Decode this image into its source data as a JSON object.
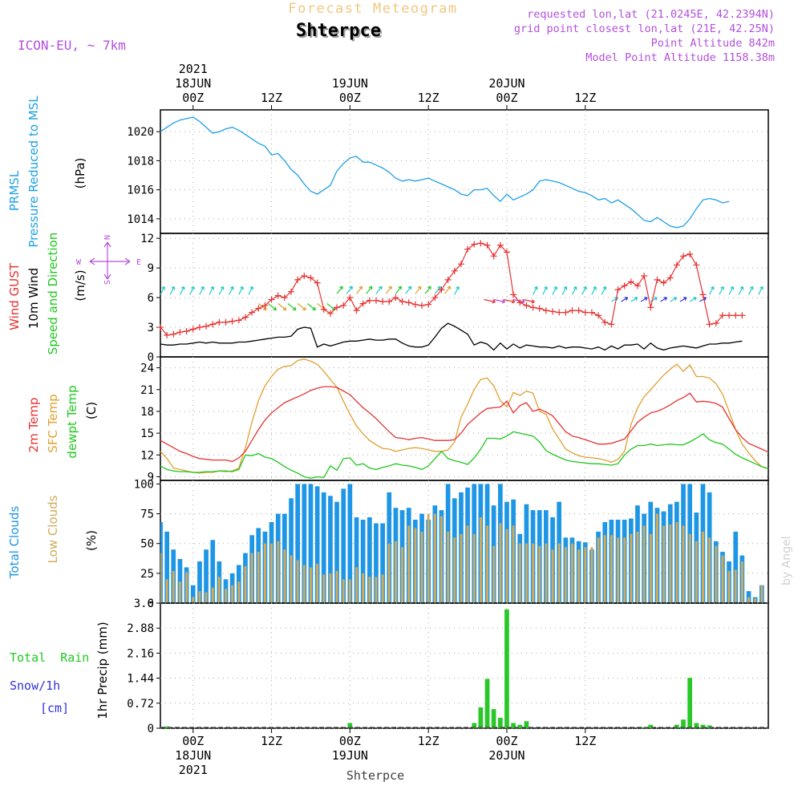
{
  "header": {
    "super_title": "Forecast Meteogram",
    "station": "Shterpce",
    "model": "ICON-EU, ~ 7km",
    "requested": "requested lon,lat (21.0245E, 42.2394N)",
    "grid_point": "grid point closest lon,lat (21E, 42.25N)",
    "point_altitude": "Point Altitude 842m",
    "model_altitude": "Model Point Altitude 1158.38m",
    "credit": "by Angel",
    "footer_station": "Shterpce"
  },
  "colors": {
    "pressure": "#1ea0e6",
    "gust": "#e63232",
    "wind": "#000000",
    "temp2m": "#e63232",
    "sfc": "#e0a030",
    "dewpt": "#1ec81e",
    "total_cloud": "#1e96e6",
    "low_cloud": "#d2aa5a",
    "rain": "#28c828",
    "snow": "#3232dc",
    "purple": "#b450dc"
  },
  "time_axis": {
    "top_labels": [
      {
        "lines": [
          "2021",
          "18JUN",
          "00Z"
        ],
        "hour": 0
      },
      {
        "lines": [
          "12Z"
        ],
        "hour": 12
      },
      {
        "lines": [
          "19JUN",
          "00Z"
        ],
        "hour": 24
      },
      {
        "lines": [
          "12Z"
        ],
        "hour": 36
      },
      {
        "lines": [
          "20JUN",
          "00Z"
        ],
        "hour": 48
      },
      {
        "lines": [
          "12Z"
        ],
        "hour": 60
      }
    ],
    "bottom_labels": [
      {
        "lines": [
          "00Z",
          "18JUN",
          "2021"
        ],
        "hour": 0
      },
      {
        "lines": [
          "12Z"
        ],
        "hour": 12
      },
      {
        "lines": [
          "00Z",
          "19JUN"
        ],
        "hour": 24
      },
      {
        "lines": [
          "12Z"
        ],
        "hour": 36
      },
      {
        "lines": [
          "00Z",
          "20JUN"
        ],
        "hour": 48
      },
      {
        "lines": [
          "12Z"
        ],
        "hour": 60
      }
    ]
  },
  "chart_data": [
    {
      "id": "pressure",
      "type": "line",
      "title": "PRMSL Pressure Reduced to MSL",
      "ylabel_lines": [
        "PRMSL",
        "Pressure Reduced to MSL"
      ],
      "unit": "(hPa)",
      "ylim": [
        1013,
        1021.5
      ],
      "yticks": [
        1014,
        1016,
        1018,
        1020
      ],
      "x_start": -5,
      "x_step": 1,
      "series": [
        {
          "name": "PRMSL",
          "values": [
            1020.0,
            1020.3,
            1020.6,
            1020.8,
            1020.9,
            1021.0,
            1020.7,
            1020.3,
            1019.9,
            1020.0,
            1020.2,
            1020.3,
            1020.1,
            1019.8,
            1019.5,
            1019.2,
            1019.0,
            1018.4,
            1018.5,
            1018.0,
            1017.4,
            1017.0,
            1016.4,
            1015.9,
            1015.7,
            1016.0,
            1016.3,
            1017.3,
            1017.8,
            1018.2,
            1018.3,
            1017.9,
            1017.9,
            1017.7,
            1017.5,
            1017.2,
            1016.8,
            1016.6,
            1016.7,
            1016.6,
            1016.7,
            1016.8,
            1016.6,
            1016.4,
            1016.2,
            1016.0,
            1015.7,
            1015.6,
            1016.0,
            1016.0,
            1016.1,
            1015.6,
            1015.2,
            1015.7,
            1015.3,
            1015.5,
            1015.7,
            1016.0,
            1016.6,
            1016.7,
            1016.6,
            1016.5,
            1016.3,
            1016.1,
            1015.9,
            1015.8,
            1015.6,
            1015.3,
            1015.4,
            1015.1,
            1015.3,
            1015.0,
            1014.7,
            1014.3,
            1013.9,
            1013.8,
            1014.1,
            1013.8,
            1013.5,
            1013.4,
            1013.5,
            1014.0,
            1014.7,
            1015.3,
            1015.4,
            1015.3,
            1015.1,
            1015.2
          ]
        }
      ]
    },
    {
      "id": "wind",
      "type": "line",
      "title": "Wind GUST / 10m Wind Speed and Direction",
      "ylabel_parts": [
        "Wind GUST",
        "10m Wind",
        "Speed and Direction"
      ],
      "unit": "(m/s)",
      "compass": {
        "n": "N",
        "s": "S",
        "w": "W",
        "e": "E"
      },
      "ylim": [
        0,
        12.5
      ],
      "yticks": [
        0,
        3,
        6,
        9,
        12
      ],
      "x_start": -5,
      "x_step": 1,
      "series": [
        {
          "name": "Wind GUST",
          "marker": "+",
          "values": [
            3.0,
            2.2,
            2.3,
            2.5,
            2.6,
            2.8,
            3.0,
            3.1,
            3.3,
            3.5,
            3.5,
            3.6,
            3.7,
            4.0,
            4.5,
            4.9,
            5.2,
            5.8,
            6.2,
            6.0,
            6.6,
            7.8,
            8.2,
            8.0,
            7.5,
            4.8,
            4.4,
            5.0,
            5.2,
            6.0,
            4.7,
            5.4,
            5.7,
            5.7,
            5.6,
            5.6,
            6.0,
            5.6,
            5.5,
            5.3,
            5.2,
            5.3,
            6.0,
            6.8,
            7.8,
            8.7,
            9.4,
            10.9,
            11.4,
            11.5,
            11.3,
            10.2,
            11.3,
            10.6,
            6.3,
            5.5,
            5.2,
            5.0,
            4.9,
            4.7,
            4.6,
            4.5,
            4.5,
            4.7,
            4.7,
            4.5,
            4.5,
            4.2,
            3.5,
            3.3,
            6.8,
            7.2,
            7.6,
            7.2,
            8.2,
            5.0,
            7.8,
            7.5,
            8.0,
            9.3,
            10.2,
            10.4,
            9.3,
            6.3,
            3.3,
            3.4,
            4.2,
            4.2,
            4.2,
            4.2
          ]
        },
        {
          "name": "10m Wind",
          "values": [
            1.3,
            1.2,
            1.2,
            1.3,
            1.3,
            1.4,
            1.5,
            1.4,
            1.5,
            1.4,
            1.4,
            1.4,
            1.5,
            1.5,
            1.6,
            1.7,
            1.8,
            1.9,
            2.0,
            2.0,
            2.1,
            2.8,
            3.0,
            2.9,
            1.0,
            1.3,
            1.1,
            1.3,
            1.5,
            1.6,
            1.6,
            1.7,
            1.8,
            1.7,
            1.7,
            1.8,
            1.8,
            1.4,
            1.1,
            1.0,
            1.0,
            1.2,
            2.0,
            2.9,
            3.4,
            3.1,
            2.7,
            2.3,
            1.2,
            1.5,
            1.3,
            0.7,
            1.4,
            0.8,
            1.3,
            0.9,
            1.2,
            1.1,
            1.0,
            1.0,
            0.9,
            1.1,
            0.9,
            1.0,
            1.0,
            0.9,
            0.8,
            1.0,
            0.7,
            1.1,
            0.8,
            1.2,
            1.2,
            1.3,
            0.8,
            1.4,
            0.9,
            0.7,
            0.9,
            1.0,
            1.1,
            1.0,
            0.9,
            1.1,
            1.3,
            1.3,
            1.4,
            1.4,
            1.5,
            1.6
          ]
        }
      ]
    },
    {
      "id": "temperature",
      "type": "line",
      "title": "2m Temp / SFC Temp / dewpt Temp",
      "ylabel_parts": [
        "2m Temp",
        "SFC Temp",
        "dewpt Temp"
      ],
      "unit": "(C)",
      "ylim": [
        8.5,
        25.5
      ],
      "yticks": [
        9,
        12,
        15,
        18,
        21,
        24
      ],
      "x_start": -5,
      "x_step": 1,
      "series": [
        {
          "name": "2m Temp",
          "values": [
            14.0,
            13.5,
            13.0,
            12.5,
            12.2,
            11.8,
            11.5,
            11.4,
            11.3,
            11.3,
            11.3,
            11.1,
            11.6,
            12.5,
            14.0,
            15.5,
            16.8,
            17.8,
            18.5,
            19.2,
            19.6,
            20.0,
            20.4,
            20.9,
            21.2,
            21.4,
            21.4,
            21.3,
            20.8,
            20.3,
            19.4,
            18.5,
            17.8,
            17.0,
            16.1,
            15.2,
            14.4,
            14.3,
            14.1,
            14.3,
            14.4,
            14.2,
            14.0,
            14.0,
            14.0,
            14.1,
            15.0,
            16.2,
            17.0,
            17.8,
            18.4,
            18.5,
            18.6,
            19.4,
            17.8,
            18.8,
            19.2,
            18.0,
            18.3,
            17.9,
            17.4,
            16.3,
            15.2,
            14.6,
            14.4,
            14.1,
            13.8,
            13.5,
            13.5,
            13.6,
            13.9,
            14.2,
            15.3,
            16.5,
            17.2,
            17.8,
            18.0,
            18.4,
            18.9,
            19.5,
            19.9,
            20.5,
            19.3,
            19.4,
            19.3,
            19.1,
            18.6,
            17.0,
            15.5,
            14.4,
            13.6,
            13.2,
            12.8,
            12.4
          ]
        },
        {
          "name": "SFC Temp",
          "values": [
            12.5,
            11.5,
            10.2,
            10.0,
            9.8,
            9.6,
            9.5,
            9.6,
            9.6,
            9.8,
            9.7,
            9.8,
            10.2,
            13.0,
            16.5,
            19.5,
            21.5,
            22.8,
            23.8,
            24.2,
            24.3,
            25.0,
            25.2,
            24.9,
            24.5,
            23.5,
            22.4,
            21.3,
            19.4,
            17.6,
            16.0,
            14.9,
            14.0,
            13.4,
            12.9,
            12.8,
            12.5,
            12.7,
            12.9,
            13.0,
            12.9,
            12.7,
            12.5,
            12.5,
            12.7,
            13.8,
            17.2,
            19.0,
            21.0,
            22.4,
            22.6,
            21.5,
            19.5,
            18.6,
            20.6,
            20.2,
            20.8,
            20.5,
            18.0,
            17.6,
            15.6,
            14.2,
            12.8,
            12.3,
            11.9,
            11.7,
            11.6,
            11.5,
            11.3,
            11.0,
            11.4,
            12.5,
            16.2,
            18.5,
            20.0,
            21.0,
            22.0,
            23.0,
            23.8,
            24.5,
            23.5,
            24.4,
            22.8,
            22.8,
            22.6,
            21.8,
            20.4,
            18.0,
            15.5,
            13.5,
            12.3,
            11.2,
            10.4,
            10.1
          ]
        },
        {
          "name": "dewpt Temp",
          "values": [
            10.5,
            10.0,
            9.8,
            9.7,
            9.7,
            9.6,
            9.6,
            9.7,
            9.7,
            9.8,
            9.8,
            9.7,
            10.0,
            12.0,
            11.9,
            12.2,
            11.7,
            11.5,
            11.0,
            10.4,
            9.9,
            9.5,
            9.0,
            8.8,
            9.0,
            8.9,
            10.5,
            9.9,
            11.5,
            11.6,
            10.6,
            10.8,
            10.2,
            10.0,
            10.3,
            10.5,
            10.8,
            10.6,
            10.5,
            10.3,
            10.0,
            10.5,
            11.5,
            12.5,
            11.5,
            11.2,
            11.0,
            10.7,
            11.6,
            12.8,
            14.3,
            14.3,
            14.2,
            14.6,
            15.2,
            15.0,
            14.8,
            14.6,
            13.8,
            12.6,
            12.1,
            11.7,
            11.3,
            11.1,
            11.0,
            10.9,
            10.8,
            10.8,
            10.7,
            10.6,
            10.8,
            12.0,
            12.8,
            13.3,
            13.3,
            13.5,
            13.3,
            13.4,
            13.5,
            13.4,
            13.4,
            13.8,
            14.3,
            14.9,
            14.1,
            13.7,
            13.5,
            12.8,
            12.1,
            11.6,
            11.2,
            10.8,
            10.4,
            10.1
          ]
        }
      ]
    },
    {
      "id": "clouds",
      "type": "bar",
      "title": "Total Clouds / Low Clouds",
      "ylabel_parts": [
        "Total Clouds",
        "Low Clouds"
      ],
      "unit": "(%)",
      "ylim": [
        0,
        103
      ],
      "yticks": [
        0,
        25,
        50,
        75,
        100
      ],
      "x_start": -5,
      "x_step": 1,
      "series": [
        {
          "name": "Total Clouds",
          "values": [
            68,
            60,
            45,
            37,
            30,
            15,
            35,
            45,
            53,
            35,
            20,
            25,
            32,
            42,
            57,
            63,
            60,
            68,
            75,
            75,
            88,
            100,
            100,
            100,
            98,
            93,
            90,
            85,
            96,
            100,
            72,
            70,
            72,
            67,
            67,
            93,
            80,
            78,
            80,
            70,
            75,
            70,
            82,
            78,
            100,
            88,
            93,
            97,
            100,
            100,
            100,
            82,
            100,
            85,
            87,
            58,
            83,
            78,
            78,
            78,
            72,
            85,
            55,
            55,
            52,
            51,
            45,
            60,
            68,
            70,
            70,
            70,
            71,
            82,
            75,
            85,
            80,
            77,
            83,
            85,
            100,
            100,
            76,
            100,
            93,
            52,
            43,
            35,
            60,
            40,
            10,
            5,
            15
          ]
        },
        {
          "name": "Low Clouds",
          "values": [
            42,
            20,
            27,
            18,
            26,
            5,
            10,
            9,
            13,
            22,
            12,
            15,
            18,
            31,
            42,
            43,
            50,
            50,
            52,
            45,
            40,
            36,
            32,
            30,
            33,
            24,
            25,
            27,
            20,
            20,
            30,
            25,
            22,
            22,
            24,
            50,
            52,
            47,
            65,
            63,
            60,
            75,
            75,
            73,
            60,
            55,
            58,
            65,
            58,
            72,
            65,
            48,
            67,
            62,
            65,
            50,
            50,
            50,
            48,
            50,
            45,
            50,
            47,
            50,
            45,
            47,
            47,
            55,
            57,
            57,
            55,
            55,
            58,
            60,
            65,
            58,
            75,
            65,
            66,
            68,
            65,
            58,
            52,
            60,
            55,
            48,
            40,
            27,
            28,
            35,
            5,
            4,
            15
          ]
        }
      ]
    },
    {
      "id": "precip",
      "type": "bar",
      "title": "Total Rain / Snow/1h",
      "ylabel_parts": [
        "Total  Rain",
        "Snow/1h",
        "[cm]"
      ],
      "unit": "1hr Precip (mm)",
      "ylim": [
        0,
        3.6
      ],
      "yticks": [
        0,
        0.72,
        1.44,
        2.16,
        2.88,
        3.6
      ],
      "ytick_labels": [
        "0",
        "0.72",
        "1.44",
        "2.16",
        "2.88",
        "3.6"
      ],
      "x_start": -5,
      "x_step": 1,
      "series": [
        {
          "name": "Total Rain",
          "values": [
            0,
            0.05,
            0,
            0,
            0,
            0,
            0,
            0,
            0,
            0,
            0,
            0,
            0,
            0,
            0,
            0,
            0,
            0,
            0,
            0,
            0,
            0,
            0,
            0,
            0,
            0,
            0,
            0,
            0,
            0.15,
            0,
            0,
            0,
            0,
            0,
            0,
            0,
            0,
            0,
            0,
            0,
            0,
            0,
            0,
            0,
            0,
            0,
            0,
            0.15,
            0.6,
            1.42,
            0.55,
            0.3,
            3.42,
            0.15,
            0.1,
            0.2,
            0,
            0,
            0,
            0,
            0,
            0,
            0,
            0,
            0,
            0,
            0,
            0,
            0,
            0,
            0,
            0,
            0,
            0.03,
            0.1,
            0,
            0,
            0,
            0.1,
            0.25,
            1.45,
            0.15,
            0.1,
            0.08,
            0,
            0,
            0,
            0,
            0,
            0,
            0,
            0
          ]
        }
      ]
    }
  ]
}
